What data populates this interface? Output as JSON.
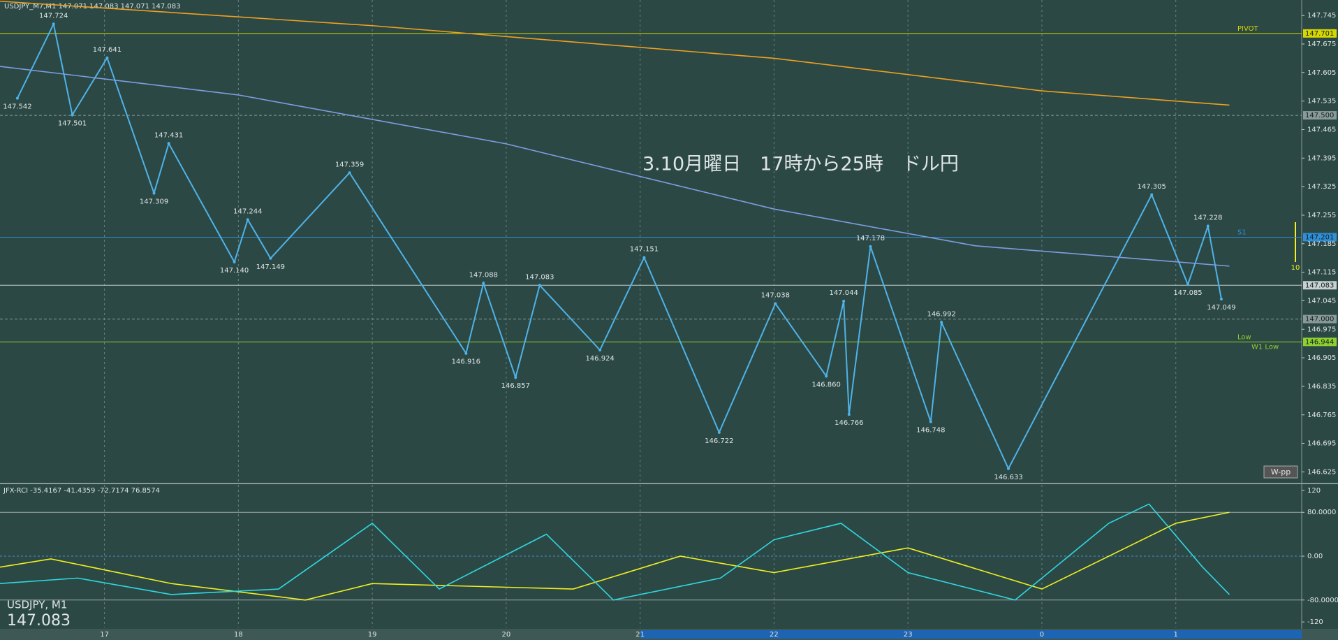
{
  "header": "USDJPY_M7,M1  147.071 147.083 147.071 147.083",
  "symbol": "USDJPY, M1",
  "last_price": "147.083",
  "button": "W-pp",
  "side_label": "10",
  "chart_data": [
    {
      "type": "line",
      "title": "3.10月曜日　17時から25時　ドル円",
      "xlim": [
        16.22,
        25.94
      ],
      "xticks": [
        17,
        18,
        19,
        20,
        21,
        22,
        23,
        {
          "value": 24,
          "label": "0"
        },
        {
          "value": 25,
          "label": "1"
        }
      ],
      "ylim": [
        146.6,
        147.783
      ],
      "yticks": [
        147.745,
        147.675,
        147.605,
        147.535,
        147.465,
        147.395,
        147.325,
        147.255,
        147.185,
        147.115,
        147.045,
        146.975,
        146.905,
        146.835,
        146.765,
        146.695,
        146.625
      ],
      "grid": true,
      "series": [
        {
          "color": "#4fb3e8",
          "x": [
            16.35,
            16.62,
            16.76,
            17.02,
            17.37,
            17.48,
            17.97,
            18.07,
            18.24,
            18.83,
            19.7,
            19.83,
            20.07,
            20.25,
            20.7,
            21.03,
            21.59,
            22.01,
            22.39,
            22.52,
            22.56,
            22.72,
            23.17,
            23.25,
            23.75,
            24.82,
            25.09,
            25.24,
            25.34
          ],
          "values": [
            147.542,
            147.724,
            147.501,
            147.641,
            147.309,
            147.431,
            147.14,
            147.244,
            147.149,
            147.359,
            146.916,
            147.088,
            146.857,
            147.083,
            146.924,
            147.151,
            146.722,
            147.038,
            146.86,
            147.044,
            146.766,
            147.178,
            146.748,
            146.992,
            146.633,
            147.305,
            147.085,
            147.228,
            147.049
          ],
          "value_labels": [
            "147.542",
            "147.724",
            "147.501",
            "147.641",
            "147.309",
            "147.431",
            "147.140",
            "147.244",
            "147.149",
            "147.359",
            "146.916",
            "147.088",
            "146.857",
            "147.083",
            "146.924",
            "147.151",
            "146.722",
            "147.038",
            "146.860",
            "147.044",
            "146.766",
            "147.178",
            "146.748",
            "146.992",
            "146.633",
            "147.305",
            "147.085",
            "147.228",
            "147.049"
          ]
        },
        {
          "color": "#f0a020",
          "x": [
            16.22,
            19,
            22,
            24,
            25.4
          ],
          "values": [
            147.78,
            147.72,
            147.64,
            147.56,
            147.525
          ]
        },
        {
          "color": "#7d9ee0",
          "x": [
            16.22,
            18,
            20,
            22,
            23.5,
            25.4
          ],
          "values": [
            147.62,
            147.55,
            147.43,
            147.27,
            147.18,
            147.13
          ]
        }
      ],
      "levels": [
        {
          "value": 147.701,
          "color": "#d8d800",
          "labels": [
            "PIVOT"
          ]
        },
        {
          "value": 147.5,
          "value_label": "147.500",
          "color": "#8a9a98",
          "labels": []
        },
        {
          "value": 147.201,
          "color": "#2f8fd8",
          "labels": [
            "S1"
          ]
        },
        {
          "value": 147.083,
          "color": "#c8d0d0",
          "labels": []
        },
        {
          "value": 147,
          "value_label": "147.000",
          "color": "#8a9a98",
          "labels": []
        },
        {
          "value": 146.944,
          "color": "#8fd030",
          "labels": [
            "Low",
            "W1 Low"
          ]
        }
      ]
    },
    {
      "type": "line",
      "title": "JFX-RCI -35.4167 -41.4359 -72.7174 76.8574",
      "xlim": [
        16.22,
        25.94
      ],
      "ylim": [
        -130,
        130
      ],
      "yticks": [
        120,
        {
          "value": 80,
          "label": "80.0000"
        },
        {
          "value": 0,
          "label": "0.00"
        },
        {
          "value": -80,
          "label": "-80.0000"
        },
        -120
      ],
      "series": [
        {
          "color": "#f0f020",
          "x": [
            16.22,
            16.6,
            17.5,
            18.5,
            19,
            20.5,
            21.3,
            22,
            23,
            24,
            25,
            25.4
          ],
          "values": [
            -20,
            -5,
            -50,
            -80,
            -50,
            -60,
            0,
            -30,
            15,
            -60,
            60,
            80
          ]
        },
        {
          "color": "#30d8e0",
          "x": [
            16.22,
            16.8,
            17.5,
            18.3,
            19,
            19.5,
            20.3,
            20.8,
            21.6,
            22,
            22.5,
            23,
            23.8,
            24.5,
            24.8,
            25.2,
            25.4
          ],
          "values": [
            -50,
            -40,
            -70,
            -60,
            60,
            -60,
            40,
            -80,
            -40,
            30,
            60,
            -30,
            -80,
            60,
            95,
            -20,
            -70
          ]
        }
      ]
    }
  ]
}
